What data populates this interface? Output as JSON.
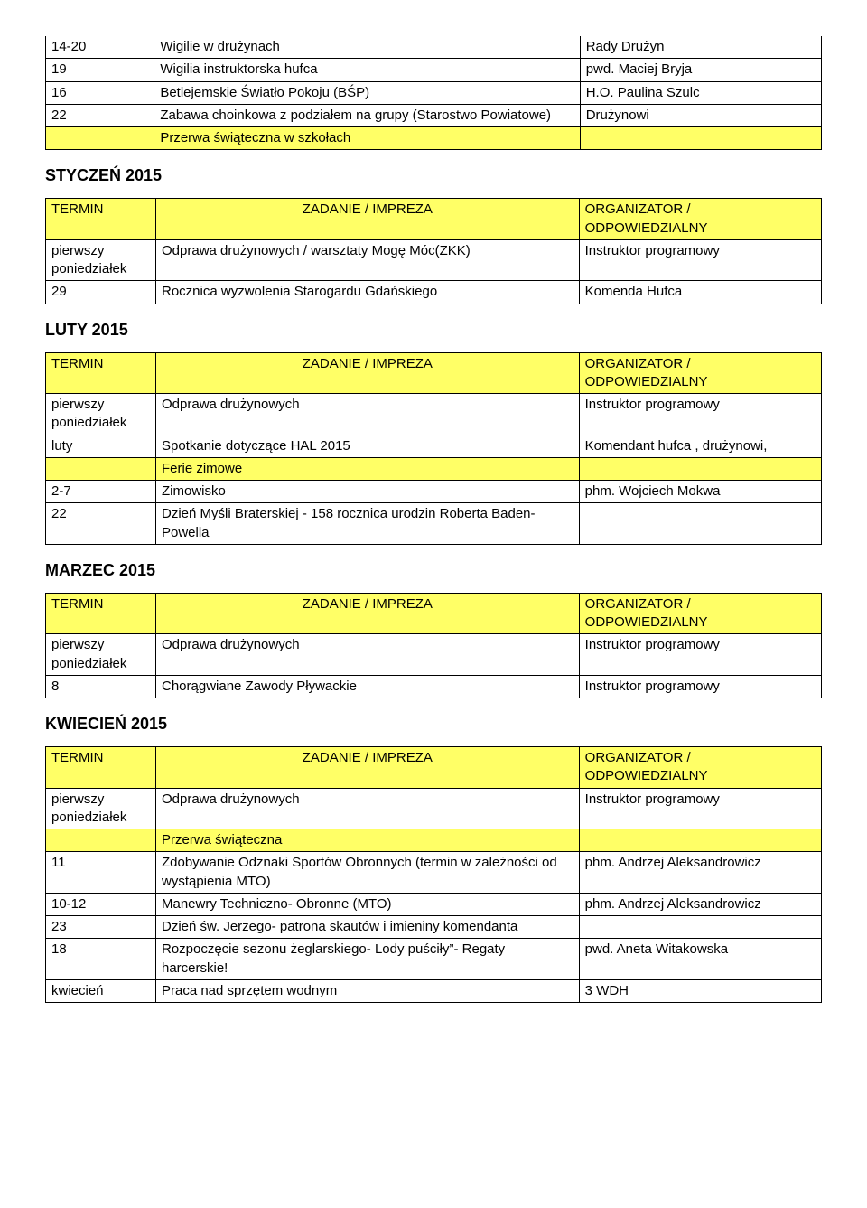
{
  "colors": {
    "highlight": "#ffff66",
    "border": "#000000",
    "text": "#000000",
    "background": "#ffffff"
  },
  "fonts": {
    "body_family": "Arial",
    "body_size_pt": 11,
    "heading_size_pt": 13,
    "heading_weight": "bold"
  },
  "top_table": {
    "rows": [
      {
        "c0": "14-20",
        "c1": "Wigilie w drużynach",
        "c2": "Rady Drużyn"
      },
      {
        "c0": "19",
        "c1": "Wigilia instruktorska hufca",
        "c2": "pwd. Maciej Bryja"
      },
      {
        "c0": "16",
        "c1": "Betlejemskie Światło Pokoju (BŚP)",
        "c2": "H.O. Paulina Szulc"
      },
      {
        "c0": "22",
        "c1": "Zabawa choinkowa z podziałem na grupy (Starostwo Powiatowe)",
        "c2": "Drużynowi"
      },
      {
        "c0": "",
        "c1": "Przerwa świąteczna w szkołach",
        "c2": "",
        "yellow": true
      }
    ]
  },
  "sections": [
    {
      "title": "STYCZEŃ 2015",
      "header": {
        "c0": "TERMIN",
        "c1": "ZADANIE / IMPREZA",
        "c2": "ORGANIZATOR / ODPOWIEDZIALNY"
      },
      "rows": [
        {
          "c0": "pierwszy poniedziałek",
          "c1": "Odprawa drużynowych / warsztaty Mogę Móc(ZKK)",
          "c2": "Instruktor programowy"
        },
        {
          "c0": "29",
          "c1": "Rocznica wyzwolenia Starogardu Gdańskiego",
          "c2": "Komenda Hufca"
        }
      ]
    },
    {
      "title": "LUTY 2015",
      "header": {
        "c0": "TERMIN",
        "c1": "ZADANIE / IMPREZA",
        "c2": "ORGANIZATOR / ODPOWIEDZIALNY"
      },
      "rows": [
        {
          "c0": "pierwszy poniedziałek",
          "c1": "Odprawa drużynowych",
          "c2": "Instruktor programowy"
        },
        {
          "c0": "luty",
          "c1": "Spotkanie dotyczące HAL 2015",
          "c2": "Komendant hufca , drużynowi,"
        },
        {
          "c0": "",
          "c1": "Ferie zimowe",
          "c2": "",
          "yellow": true
        },
        {
          "c0": "2-7",
          "c1": "Zimowisko",
          "c2": "phm. Wojciech Mokwa"
        },
        {
          "c0": "22",
          "c1": "Dzień Myśli Braterskiej - 158 rocznica urodzin Roberta Baden- Powella",
          "c2": ""
        }
      ]
    },
    {
      "title": "MARZEC 2015",
      "header": {
        "c0": "TERMIN",
        "c1": "ZADANIE / IMPREZA",
        "c2": "ORGANIZATOR / ODPOWIEDZIALNY"
      },
      "rows": [
        {
          "c0": "pierwszy poniedziałek",
          "c1": "Odprawa drużynowych",
          "c2": "Instruktor programowy"
        },
        {
          "c0": "8",
          "c1": "Chorągwiane Zawody Pływackie",
          "c2": "Instruktor programowy"
        }
      ]
    },
    {
      "title": "KWIECIEŃ 2015",
      "header": {
        "c0": "TERMIN",
        "c1": "ZADANIE / IMPREZA",
        "c2": "ORGANIZATOR / ODPOWIEDZIALNY"
      },
      "rows": [
        {
          "c0": "pierwszy poniedziałek",
          "c1": "Odprawa drużynowych",
          "c2": "Instruktor programowy"
        },
        {
          "c0": "",
          "c1": "Przerwa świąteczna",
          "c2": "",
          "yellow": true
        },
        {
          "c0": "11",
          "c1": "Zdobywanie Odznaki Sportów Obronnych   (termin w zależności od wystąpienia MTO)",
          "c2": "phm. Andrzej Aleksandrowicz"
        },
        {
          "c0": "10-12",
          "c1": "Manewry Techniczno- Obronne (MTO)",
          "c2": "phm. Andrzej Aleksandrowicz"
        },
        {
          "c0": "23",
          "c1": "Dzień św. Jerzego- patrona skautów i imieniny komendanta",
          "c2": ""
        },
        {
          "c0": "18",
          "c1": "Rozpoczęcie sezonu żeglarskiego- Lody puściły”- Regaty harcerskie!",
          "c2": " pwd. Aneta Witakowska"
        },
        {
          "c0": "kwiecień",
          "c1": "Praca nad sprzętem wodnym",
          "c2": "3 WDH"
        }
      ]
    }
  ]
}
